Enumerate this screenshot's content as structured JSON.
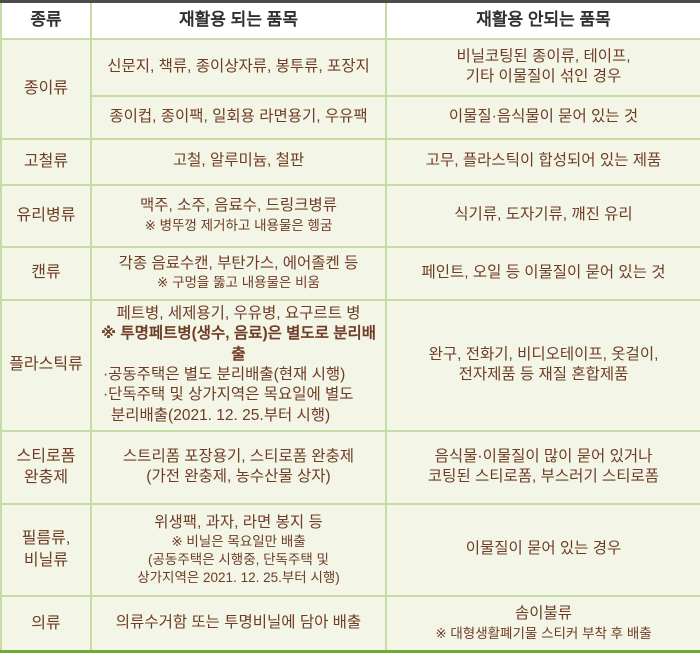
{
  "colors": {
    "cell_background": "#f3f6e7",
    "grid_border": "#c5dca6",
    "top_border": "#4b4b4b",
    "bottom_border": "#6fa93c",
    "body_text": "#6f3c26",
    "header_text": "#303030",
    "header_background": "#ffffff"
  },
  "table": {
    "headers": [
      "종류",
      "재활용 되는 품목",
      "재활용 안되는 품목"
    ],
    "paper": {
      "category": "종이류",
      "yes1": "신문지, 책류, 종이상자류, 봉투류, 포장지",
      "no1_l1": "비닐코팅된 종이류, 테이프,",
      "no1_l2": "기타 이물질이 섞인 경우",
      "yes2": "종이컵, 종이팩, 일회용 라면용기, 우유팩",
      "no2": "이물질·음식물이 묻어 있는 것"
    },
    "metal": {
      "category": "고철류",
      "yes": "고철, 알루미늄, 철판",
      "no": "고무, 플라스틱이 합성되어 있는 제품"
    },
    "glass": {
      "category": "유리병류",
      "yes": "맥주, 소주, 음료수, 드링크병류",
      "yes_note": "※ 병뚜껑 제거하고 내용물은 헹굼",
      "no": "식기류, 도자기류, 깨진 유리"
    },
    "can": {
      "category": "캔류",
      "yes": "각종 음료수캔, 부탄가스, 에어졸켄 등",
      "yes_note": "※ 구멍을 뚫고 내용물은 비움",
      "no": "페인트, 오일 등 이물질이 묻어 있는 것"
    },
    "plastic": {
      "category": "플라스틱류",
      "yes_l1": "페트병, 세제용기, 우유병, 요구르트 병",
      "yes_l2": "※ 투명페트병(생수, 음료)은 별도로 분리배출",
      "yes_l3": "·공동주택은 별도 분리배출(현재 시행)",
      "yes_l4": "·단독주택 및 상가지역은 목요일에 별도",
      "yes_l5": "분리배출(2021. 12. 25.부터 시행)",
      "no_l1": "완구, 전화기, 비디오테이프, 옷걸이,",
      "no_l2": "전자제품 등 재질 혼합제품"
    },
    "styrofoam": {
      "category_l1": "스티로폼",
      "category_l2": "완충제",
      "yes_l1": "스트리폼 포장용기, 스티로폼 완충제",
      "yes_l2": "(가전 완충제, 농수산물 상자)",
      "no_l1": "음식물·이물질이 많이 묻어 있거나",
      "no_l2": "코팅된 스티로폼, 부스러기 스티로폼"
    },
    "film": {
      "category_l1": "필름류,",
      "category_l2": "비닐류",
      "yes_l1": "위생팩, 과자, 라면 봉지 등",
      "yes_l2": "※ 비닐은 목요일만 배출",
      "yes_l3": "(공동주택은 시행중, 단독주택 및",
      "yes_l4": "상가지역은 2021. 12. 25.부터 시행)",
      "no": "이물질이 묻어 있는 경우"
    },
    "clothes": {
      "category": "의류",
      "yes": "의류수거함 또는 투명비닐에 담아 배출",
      "no_l1": "솜이불류",
      "no_l2": "※ 대형생활폐기물 스티커 부착 후 배출"
    }
  }
}
